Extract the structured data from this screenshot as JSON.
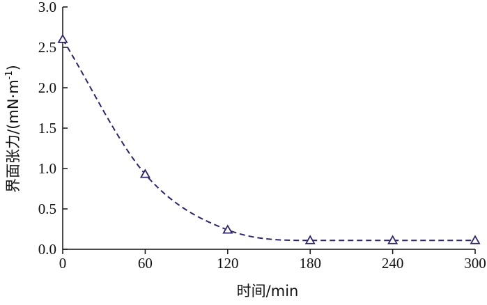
{
  "chart_data": {
    "type": "line",
    "xlabel": "时间/min",
    "ylabel": "界面张力/(mN·m",
    "ylabel_sup": "-1",
    "ylabel_close": ")",
    "x_ticks": [
      "0",
      "60",
      "120",
      "180",
      "240",
      "300"
    ],
    "y_ticks": [
      "0.0",
      "0.5",
      "1.0",
      "1.5",
      "2.0",
      "2.5",
      "3.0"
    ],
    "xlim": [
      0,
      300
    ],
    "ylim": [
      0,
      3.0
    ],
    "grid": false,
    "series": [
      {
        "color": "#2e2466",
        "line_style": "dashed",
        "marker": "triangle-open",
        "x": [
          0,
          60,
          120,
          180,
          240,
          300
        ],
        "y": [
          2.6,
          0.93,
          0.24,
          0.11,
          0.11,
          0.11
        ]
      }
    ]
  }
}
